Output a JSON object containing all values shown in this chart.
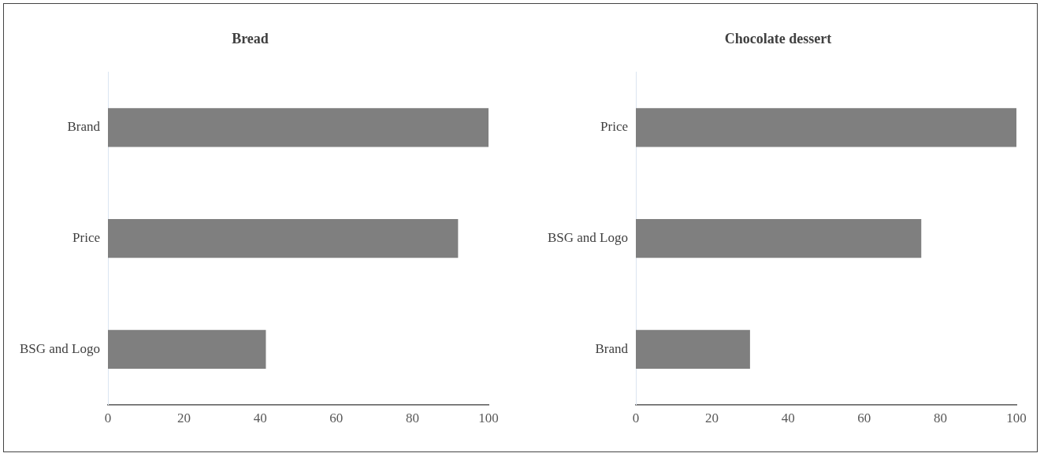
{
  "chart_data": [
    {
      "type": "bar",
      "orientation": "horizontal",
      "title": "Bread",
      "categories": [
        "Brand",
        "Price",
        "BSG and Logo"
      ],
      "values": [
        100,
        92,
        41.5
      ],
      "color": "#7f7f7f",
      "xlim": [
        0,
        100
      ],
      "xticks": [
        0,
        20,
        40,
        60,
        80,
        100
      ]
    },
    {
      "type": "bar",
      "orientation": "horizontal",
      "title": "Chocolate dessert",
      "categories": [
        "Price",
        "BSG and Logo",
        "Brand"
      ],
      "values": [
        100,
        75,
        30
      ],
      "color": "#7f7f7f",
      "xlim": [
        0,
        100
      ],
      "xticks": [
        0,
        20,
        40,
        60,
        80,
        100
      ]
    }
  ]
}
